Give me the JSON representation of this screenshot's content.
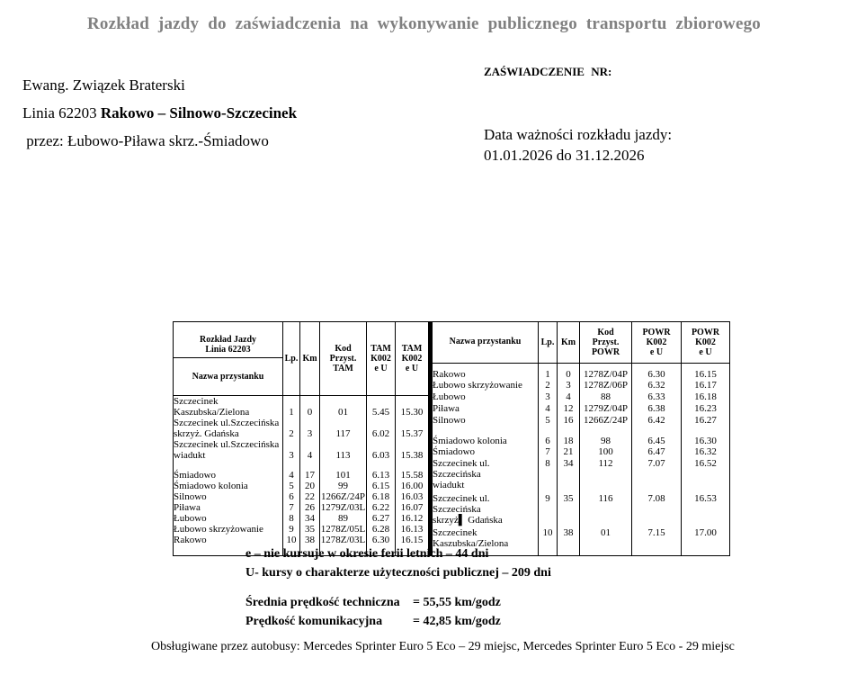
{
  "page": {
    "title": "Rozkład jazdy do zaświadczenia na wykonywanie publicznego transportu zbiorowego"
  },
  "info": {
    "operator": "Ewang. Związek Braterski",
    "line_label": "Linia 62203 ",
    "line_route": "Rakowo – Silnowo-Szczecinek",
    "via": " przez: Łubowo-Piława skrz.-Śmiadowo",
    "certificate_label": "ZAŚWIADCZENIE NR:",
    "validity_label": "Data ważności rozkładu jazdy:",
    "validity_value": "01.01.2026 do 31.12.2026"
  },
  "timetable": {
    "left": {
      "corner_title": "Rozkład Jazdy\nLinia 62203",
      "corner_label": "Nazwa przystanku",
      "col_lp": "Lp.",
      "col_km": "Km",
      "col_kod": "Kod\nPrzyst.\nTAM",
      "col_t1": "TAM\nK002\ne U",
      "col_t2": "TAM\nK002\ne U",
      "rows": [
        {
          "name": "Szczecinek\nKaszubska/Zielona",
          "vals": [
            "1",
            "0",
            "01",
            "5.45",
            "15.30"
          ]
        },
        {
          "name": "Szczecinek ul.Szczecińska\nskrzyż. Gdańska",
          "vals": [
            "2",
            "3",
            "117",
            "6.02",
            "15.37"
          ]
        },
        {
          "name": "Szczecinek ul.Szczecińska\nwiadukt",
          "vals": [
            "3",
            "4",
            "113",
            "6.03",
            "15.38"
          ]
        },
        {
          "gap": true,
          "h": 10
        },
        {
          "name": "Śmiadowo",
          "vals": [
            "4",
            "17",
            "101",
            "6.13",
            "15.58"
          ]
        },
        {
          "name": "Śmiadowo kolonia",
          "vals": [
            "5",
            "20",
            "99",
            "6.15",
            "16.00"
          ]
        },
        {
          "name": "Silnowo",
          "vals": [
            "6",
            "22",
            "1266Z/24P",
            "6.18",
            "16.03"
          ]
        },
        {
          "name": "Piława",
          "vals": [
            "7",
            "26",
            "1279Z/03L",
            "6.22",
            "16.07"
          ]
        },
        {
          "name": "Łubowo",
          "vals": [
            "8",
            "34",
            "89",
            "6.27",
            "16.12"
          ]
        },
        {
          "name": "Łubowo skrzyżowanie",
          "vals": [
            "9",
            "35",
            "1278Z/05L",
            "6.28",
            "16.13"
          ]
        },
        {
          "name": "Rakowo",
          "vals": [
            "10",
            "38",
            "1278Z/03L",
            "6.30",
            "16.15"
          ]
        },
        {
          "gap": true,
          "h": 11
        }
      ]
    },
    "right": {
      "corner_label": "Nazwa przystanku",
      "col_lp": "Lp.",
      "col_km": "Km",
      "col_kod": "Kod\nPrzyst.\nPOWR",
      "col_t1": "POWR\nK002\ne U",
      "col_t2": "POWR\nK002\ne U",
      "rows": [
        {
          "gap": true,
          "h": 6
        },
        {
          "name": "Rakowo",
          "vals": [
            "1",
            "0",
            "1278Z/04P",
            "6.30",
            "16.15"
          ]
        },
        {
          "name": "Łubowo skrzyżowanie",
          "vals": [
            "2",
            "3",
            "1278Z/06P",
            "6.32",
            "16.17"
          ]
        },
        {
          "name": "Łubowo",
          "vals": [
            "3",
            "4",
            "88",
            "6.33",
            "16.18"
          ]
        },
        {
          "name": "Piława",
          "vals": [
            "4",
            "12",
            "1279Z/04P",
            "6.38",
            "16.23"
          ]
        },
        {
          "name": "Silnowo",
          "vals": [
            "5",
            "16",
            "1266Z/24P",
            "6.42",
            "16.27"
          ]
        },
        {
          "gap": true,
          "h": 10
        },
        {
          "name": "Śmiadowo kolonia",
          "vals": [
            "6",
            "18",
            "98",
            "6.45",
            "16.30"
          ]
        },
        {
          "name": "Śmiadowo",
          "vals": [
            "7",
            "21",
            "100",
            "6.47",
            "16.32"
          ]
        },
        {
          "name": "Szczecinek ul. Szczecińska\nwiadukt",
          "vals": [
            "8",
            "34",
            "112",
            "7.07",
            "16.52"
          ]
        },
        {
          "name": "Szczecinek ul. Szczecińska\nskrzyż▌ Gdańska",
          "vals": [
            "9",
            "35",
            "116",
            "7.08",
            "16.53"
          ]
        },
        {
          "name": "Szczecinek\nKaszubska/Zielona",
          "vals": [
            "10",
            "38",
            "01",
            "7.15",
            "17.00"
          ]
        },
        {
          "gap": true,
          "h": 5
        }
      ]
    }
  },
  "notes": {
    "line1": "e – nie kursuje w okresie ferii letnich – 44 dni",
    "line2": "U- kursy o charakterze użyteczności publicznej – 209 dni"
  },
  "speeds": {
    "tech_label": "Średnia prędkość techniczna",
    "tech_value": "= 55,55 km/godz",
    "comm_label": "Prędkość komunikacyjna",
    "comm_value": "= 42,85 km/godz"
  },
  "footer": "Obsługiwane przez autobusy: Mercedes Sprinter Euro 5 Eco – 29 miejsc, Mercedes Sprinter Euro 5 Eco - 29 miejsc"
}
